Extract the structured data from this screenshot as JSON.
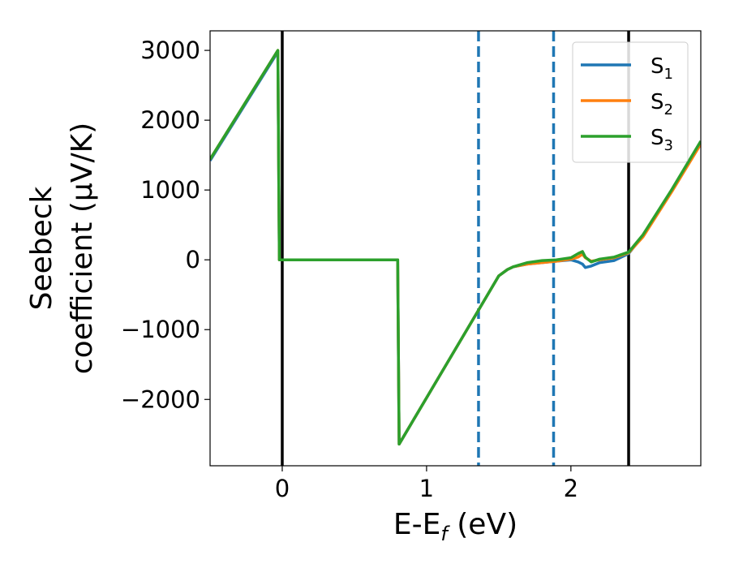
{
  "chart_data": {
    "type": "line",
    "xlabel": "E-E",
    "xlabel_sub": "f",
    "xlabel_unit": " (eV)",
    "ylabel_line1": "Seebeck",
    "ylabel_line2": "coefficient  (μV/K)",
    "xlim": [
      -0.5,
      2.9
    ],
    "ylim": [
      -2950,
      3280
    ],
    "xticks": [
      0,
      1,
      2
    ],
    "yticks": [
      -2000,
      -1000,
      0,
      1000,
      2000,
      3000
    ],
    "xtick_labels": [
      "0",
      "1",
      "2"
    ],
    "ytick_labels": [
      "−2000",
      "−1000",
      "0",
      "1000",
      "2000",
      "3000"
    ],
    "legend_position": "top-right",
    "vlines": [
      {
        "x": 0.0,
        "style": "solid",
        "color": "#000000"
      },
      {
        "x": 2.4,
        "style": "solid",
        "color": "#000000"
      },
      {
        "x": 1.36,
        "style": "dashed",
        "color": "#1f77b4"
      },
      {
        "x": 1.88,
        "style": "dashed",
        "color": "#1f77b4"
      }
    ],
    "series": [
      {
        "name": "S",
        "sub": "1",
        "color": "#1f77b4",
        "x": [
          -0.5,
          -0.03,
          -0.02,
          0.8,
          0.81,
          1.36,
          1.5,
          1.56,
          1.6,
          1.7,
          1.8,
          1.9,
          2.0,
          2.05,
          2.08,
          2.1,
          2.14,
          2.2,
          2.3,
          2.4,
          2.5,
          2.7,
          2.9
        ],
        "y": [
          1420,
          2980,
          0,
          0,
          -2640,
          -720,
          -230,
          -140,
          -100,
          -60,
          -40,
          -20,
          0,
          -30,
          -60,
          -110,
          -90,
          -40,
          -10,
          90,
          350,
          1000,
          1680
        ]
      },
      {
        "name": "S",
        "sub": "2",
        "color": "#ff7f0e",
        "x": [
          -0.5,
          -0.03,
          -0.02,
          0.8,
          0.81,
          1.36,
          1.5,
          1.56,
          1.6,
          1.7,
          1.8,
          1.9,
          2.0,
          2.05,
          2.08,
          2.1,
          2.14,
          2.2,
          2.3,
          2.4,
          2.5,
          2.7,
          2.9
        ],
        "y": [
          1440,
          3000,
          0,
          0,
          -2640,
          -720,
          -230,
          -140,
          -100,
          -60,
          -40,
          -20,
          10,
          40,
          80,
          30,
          -20,
          0,
          30,
          100,
          330,
          980,
          1660
        ]
      },
      {
        "name": "S",
        "sub": "3",
        "color": "#2ca02c",
        "x": [
          -0.5,
          -0.03,
          -0.02,
          0.8,
          0.81,
          1.36,
          1.5,
          1.56,
          1.6,
          1.7,
          1.8,
          1.9,
          2.0,
          2.05,
          2.08,
          2.1,
          2.14,
          2.2,
          2.3,
          2.4,
          2.5,
          2.7,
          2.9
        ],
        "y": [
          1440,
          3000,
          0,
          0,
          -2640,
          -720,
          -230,
          -140,
          -100,
          -40,
          -10,
          0,
          30,
          90,
          120,
          40,
          -30,
          10,
          40,
          110,
          360,
          1010,
          1700
        ]
      }
    ]
  }
}
